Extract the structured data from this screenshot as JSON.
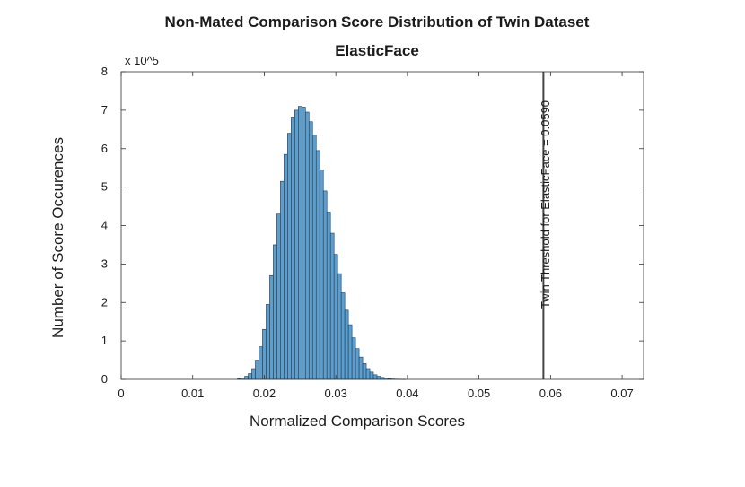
{
  "chart_data": {
    "type": "bar",
    "title": "Non-Mated Comparison Score Distribution of Twin Dataset",
    "subtitle": "ElasticFace",
    "xlabel": "Normalized Comparison Scores",
    "ylabel": "Number of Score Occurences",
    "y_exponent_label": "x 10^5",
    "xlim": [
      0,
      0.073
    ],
    "ylim": [
      0,
      8
    ],
    "x_ticks": [
      0,
      0.01,
      0.02,
      0.03,
      0.04,
      0.05,
      0.06,
      0.07
    ],
    "x_tick_labels": [
      "0",
      "0.01",
      "0.02",
      "0.03",
      "0.04",
      "0.05",
      "0.06",
      "0.07"
    ],
    "y_ticks": [
      0,
      1,
      2,
      3,
      4,
      5,
      6,
      7,
      8
    ],
    "y_tick_labels": [
      "0",
      "1",
      "2",
      "3",
      "4",
      "5",
      "6",
      "7",
      "8"
    ],
    "grid": false,
    "bar_color": "#5b9fd0",
    "bar_edge_color": "#1f3b52",
    "bin_width": 0.0005,
    "bin_centers": [
      0.0165,
      0.017,
      0.0175,
      0.018,
      0.0185,
      0.019,
      0.0195,
      0.02,
      0.0205,
      0.021,
      0.0215,
      0.022,
      0.0225,
      0.023,
      0.0235,
      0.024,
      0.0245,
      0.025,
      0.0255,
      0.026,
      0.0265,
      0.027,
      0.0275,
      0.028,
      0.0285,
      0.029,
      0.0295,
      0.03,
      0.0305,
      0.031,
      0.0315,
      0.032,
      0.0325,
      0.033,
      0.0335,
      0.034,
      0.0345,
      0.035,
      0.0355,
      0.036,
      0.0365,
      0.037,
      0.0375,
      0.038,
      0.0385,
      0.039,
      0.0395
    ],
    "values": [
      0.02,
      0.04,
      0.08,
      0.15,
      0.28,
      0.5,
      0.85,
      1.3,
      1.95,
      2.7,
      3.5,
      4.3,
      5.15,
      5.85,
      6.4,
      6.8,
      7.0,
      7.1,
      7.08,
      6.95,
      6.7,
      6.35,
      5.95,
      5.45,
      4.9,
      4.35,
      3.8,
      3.25,
      2.75,
      2.25,
      1.8,
      1.42,
      1.08,
      0.8,
      0.58,
      0.41,
      0.28,
      0.19,
      0.12,
      0.08,
      0.05,
      0.03,
      0.02,
      0.01,
      0.006,
      0.004,
      0.002
    ],
    "threshold": {
      "x": 0.059,
      "label": "Twin Threshold for ElasticFace = 0.0590",
      "color": "#444444"
    }
  }
}
